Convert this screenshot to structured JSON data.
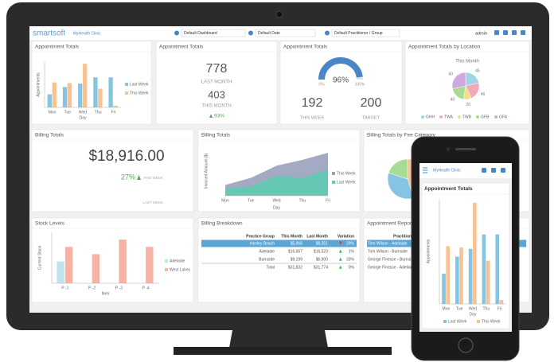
{
  "header": {
    "brand": "smartsoft",
    "clinic": "MyHealth Clinic",
    "dashboard": "Default Dashboard",
    "date": "Default Date",
    "practitioner": "Default Practitioner / Group",
    "user": "admin"
  },
  "appointments_chart": {
    "type": "bar",
    "title": "Appointment Totals",
    "categories": [
      "Mon",
      "Tue",
      "Wed",
      "Thu",
      "Fri"
    ],
    "x_label": "Day",
    "y_label": "Appointments",
    "ylim": [
      0,
      80
    ],
    "series": [
      {
        "name": "Last Week",
        "color": "#86c5e2",
        "values": [
          23,
          36,
          42,
          53,
          53
        ]
      },
      {
        "name": "This Week",
        "color": "#f8c393",
        "values": [
          44,
          43,
          77,
          33,
          3
        ]
      }
    ]
  },
  "appointment_counts": {
    "title": "Appointment Totals",
    "last_month": 778,
    "last_month_label": "LAST MONTH",
    "this_month": 403,
    "this_month_label": "THIS MONTH",
    "change": "93%"
  },
  "appointment_gauge": {
    "type": "gauge",
    "title": "Appointment Totals",
    "range": [
      0,
      100
    ],
    "value": 96,
    "value_label": "96%",
    "min_label": "0%",
    "max_label": "100%",
    "color": "#4a86c5",
    "this_week": 192,
    "this_week_label": "THIS WEEK",
    "target": 200,
    "target_label": "TARGET"
  },
  "location_pie": {
    "type": "pie",
    "title": "Appointment Totals by Location",
    "subtitle": "This Month",
    "categories": [
      "GHH",
      "TWA",
      "TWB",
      "GFB",
      "GFA"
    ],
    "values": [
      45,
      46,
      20,
      40,
      60
    ],
    "colors": [
      "#9fd3ea",
      "#f4a9b8",
      "#f6dd8a",
      "#a8dc95",
      "#cfa8e0"
    ]
  },
  "billing_totals": {
    "title": "Billing Totals",
    "amount": "$18,916.00",
    "change": "27%",
    "change_label": "THIS WEEK",
    "last_label": "LAST WEEK"
  },
  "billing_chart": {
    "type": "area",
    "title": "Billing Totals",
    "categories": [
      "Mon",
      "Tue",
      "Wed",
      "Thu",
      "Fri"
    ],
    "x_label": "Day",
    "y_label": "Invoiced Amount ($)",
    "ylim": [
      0,
      7000
    ],
    "series": [
      {
        "name": "This Week",
        "color": "#9aa1bd",
        "values": [
          1500,
          2500,
          4200,
          5000,
          6000
        ]
      },
      {
        "name": "Last Week",
        "color": "#5fcab2",
        "values": [
          1000,
          1300,
          2800,
          2500,
          3700
        ]
      }
    ]
  },
  "fee_pie": {
    "type": "pie",
    "title": "Billing Totals by Fee Category",
    "values": [
      45,
      35,
      20
    ],
    "colors": [
      "#f8c393",
      "#86c5e2",
      "#a8dc95"
    ]
  },
  "stock_chart": {
    "type": "bar",
    "title": "Stock Levels",
    "categories": [
      "P -1",
      "P -2",
      "P -3",
      "P -4"
    ],
    "x_label": "Item",
    "y_label": "Current Stock",
    "ylim": [
      0,
      7
    ],
    "series": [
      {
        "name": "Adelaide",
        "color": "#bfe3ef",
        "values": [
          3,
          0,
          0,
          0
        ]
      },
      {
        "name": "West Lakes",
        "color": "#f6b3a4",
        "values": [
          5,
          4,
          6,
          5
        ]
      }
    ]
  },
  "billing_table": {
    "title": "Billing Breakdown",
    "columns": [
      "Practice Group",
      "This Month",
      "Last Month",
      "Variation"
    ],
    "rows": [
      [
        "Henley Beach",
        "$5,966",
        "$8,351",
        "29%"
      ],
      [
        "Adelaide",
        "$16,667",
        "$16,523",
        "1%"
      ],
      [
        "Burnside",
        "$9,199",
        "$6,900",
        "33%"
      ],
      [
        "Total",
        "$31,832",
        "$31,774",
        "0%"
      ]
    ],
    "trends": [
      "down",
      "up",
      "up",
      "up"
    ]
  },
  "appointment_report": {
    "title": "Appointment Reports",
    "column": "Practitioner",
    "rows": [
      "Tom Wilson - Adelaide",
      "Tom Wilson - Burnside",
      "George Finesse - Burnside",
      "George Finesse - Adelaide"
    ]
  },
  "phone": {
    "clinic": "MyHealth Clinic",
    "chart": {
      "type": "bar",
      "title": "Appointment Totals",
      "categories": [
        "Mon",
        "Tue",
        "Wed",
        "Thu",
        "Fri"
      ],
      "x_label": "Day",
      "y_label": "Appointments",
      "ylim": [
        0,
        80
      ],
      "series": [
        {
          "name": "Last Week",
          "color": "#86c5e2",
          "values": [
            23,
            36,
            42,
            53,
            53
          ]
        },
        {
          "name": "This Week",
          "color": "#f8c393",
          "values": [
            44,
            43,
            77,
            33,
            3
          ]
        }
      ]
    }
  }
}
